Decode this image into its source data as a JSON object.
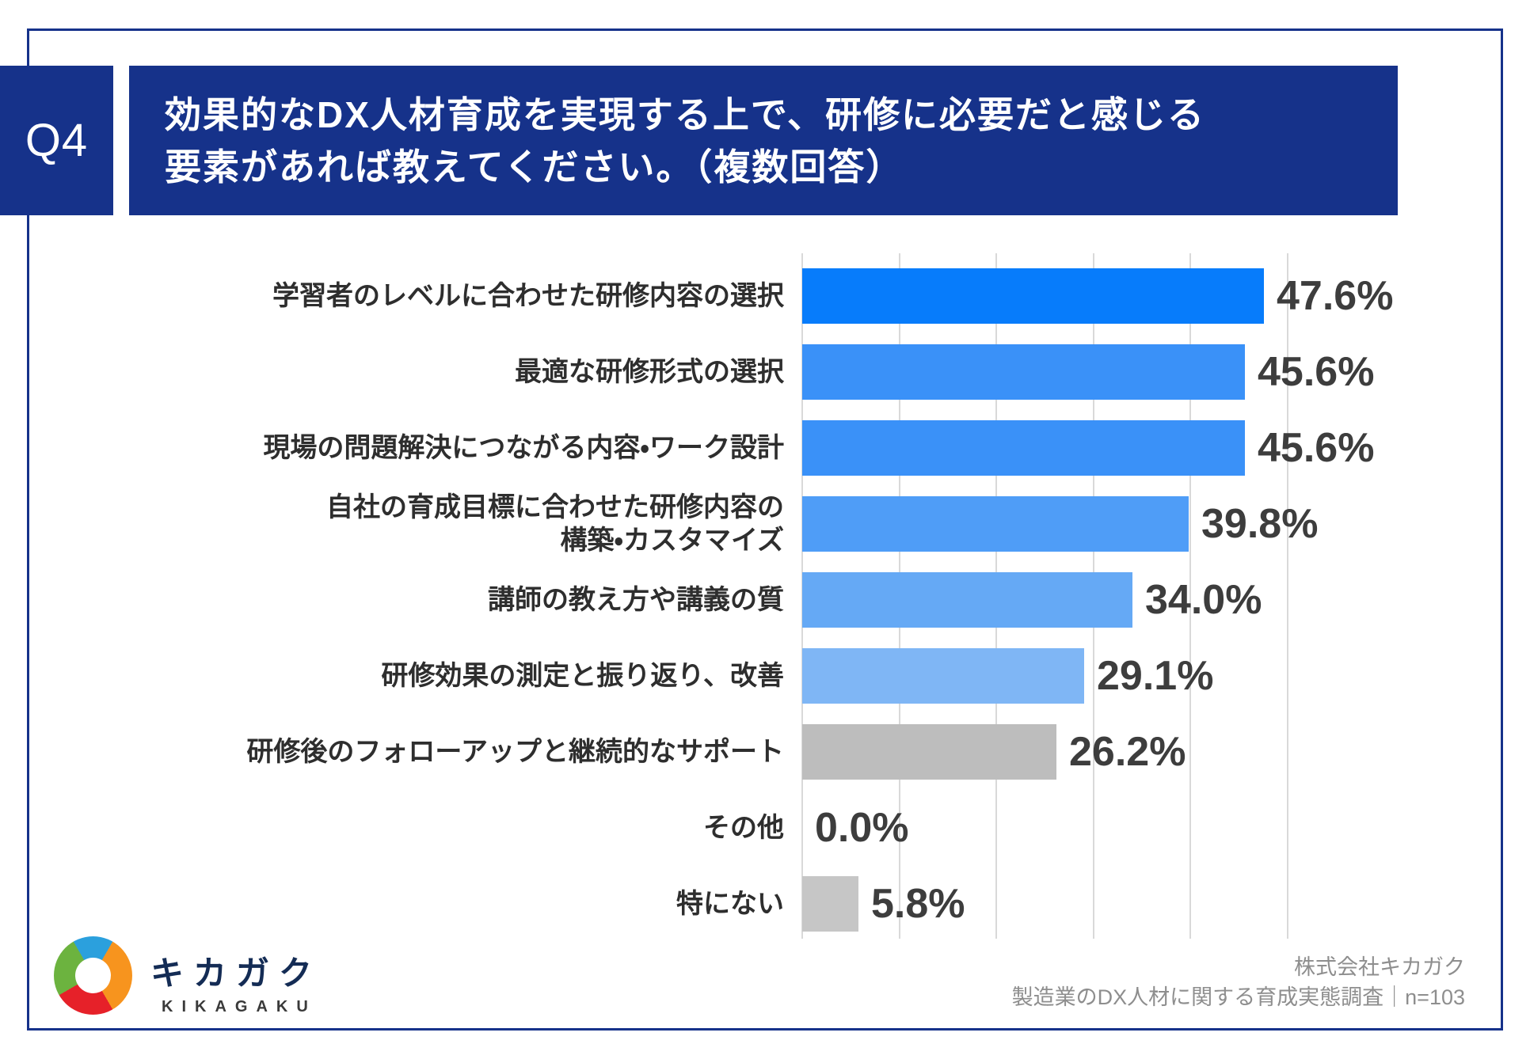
{
  "q_label": "Q4",
  "header": {
    "title_line1": "効果的なDX人材育成を実現する上で、研修に必要だと感じる",
    "title_line2": "要素があれば教えてください。（複数回答）"
  },
  "chart_data": {
    "type": "bar",
    "orientation": "horizontal",
    "title": "効果的なDX人材育成を実現する上で、研修に必要だと感じる要素があれば教えてください。（複数回答）",
    "unit": "%",
    "xlim": [
      0,
      50
    ],
    "gridline_step": 10,
    "grid": true,
    "value_label_format": "one_decimal_percent",
    "rows": [
      {
        "label": "学習者のレベルに合わせた研修内容の選択",
        "value": 47.6,
        "color": "#077cfb"
      },
      {
        "label": "最適な研修形式の選択",
        "value": 45.6,
        "color": "#3a91f8"
      },
      {
        "label": "現場の問題解決につながる内容・ワーク設計",
        "value": 45.6,
        "color": "#3a91f8"
      },
      {
        "label": "自社の育成目標に合わせた研修内容の\n構築・カスタマイズ",
        "value": 39.8,
        "color": "#4f9df7"
      },
      {
        "label": "講師の教え方や講義の質",
        "value": 34.0,
        "color": "#65a9f5"
      },
      {
        "label": "研修効果の測定と振り返り、改善",
        "value": 29.1,
        "color": "#7fb6f5"
      },
      {
        "label": "研修後のフォローアップと継続的なサポート",
        "value": 26.2,
        "color": "#bdbdbd"
      },
      {
        "label": "その他",
        "value": 0.0,
        "color": "#bdbdbd"
      },
      {
        "label": "特にない",
        "value": 5.8,
        "color": "#c6c6c6"
      }
    ]
  },
  "footer": {
    "brand_ja": "キカガク",
    "brand_en": "KIKAGAKU",
    "source_line1": "株式会社キカガク",
    "source_line2": "製造業のDX人材に関する育成実態調査｜n=103"
  },
  "colors": {
    "navy": "#16328a",
    "grid": "#d9d9d9",
    "value_ink": "#3d3d3d",
    "label_ink": "#2e2e2e",
    "source_ink": "#8e8e8e",
    "brand_ink": "#142c55",
    "logo_blue": "#2ba0dd",
    "logo_green": "#6cb33f",
    "logo_red": "#e62129",
    "logo_orange": "#f7941e"
  }
}
